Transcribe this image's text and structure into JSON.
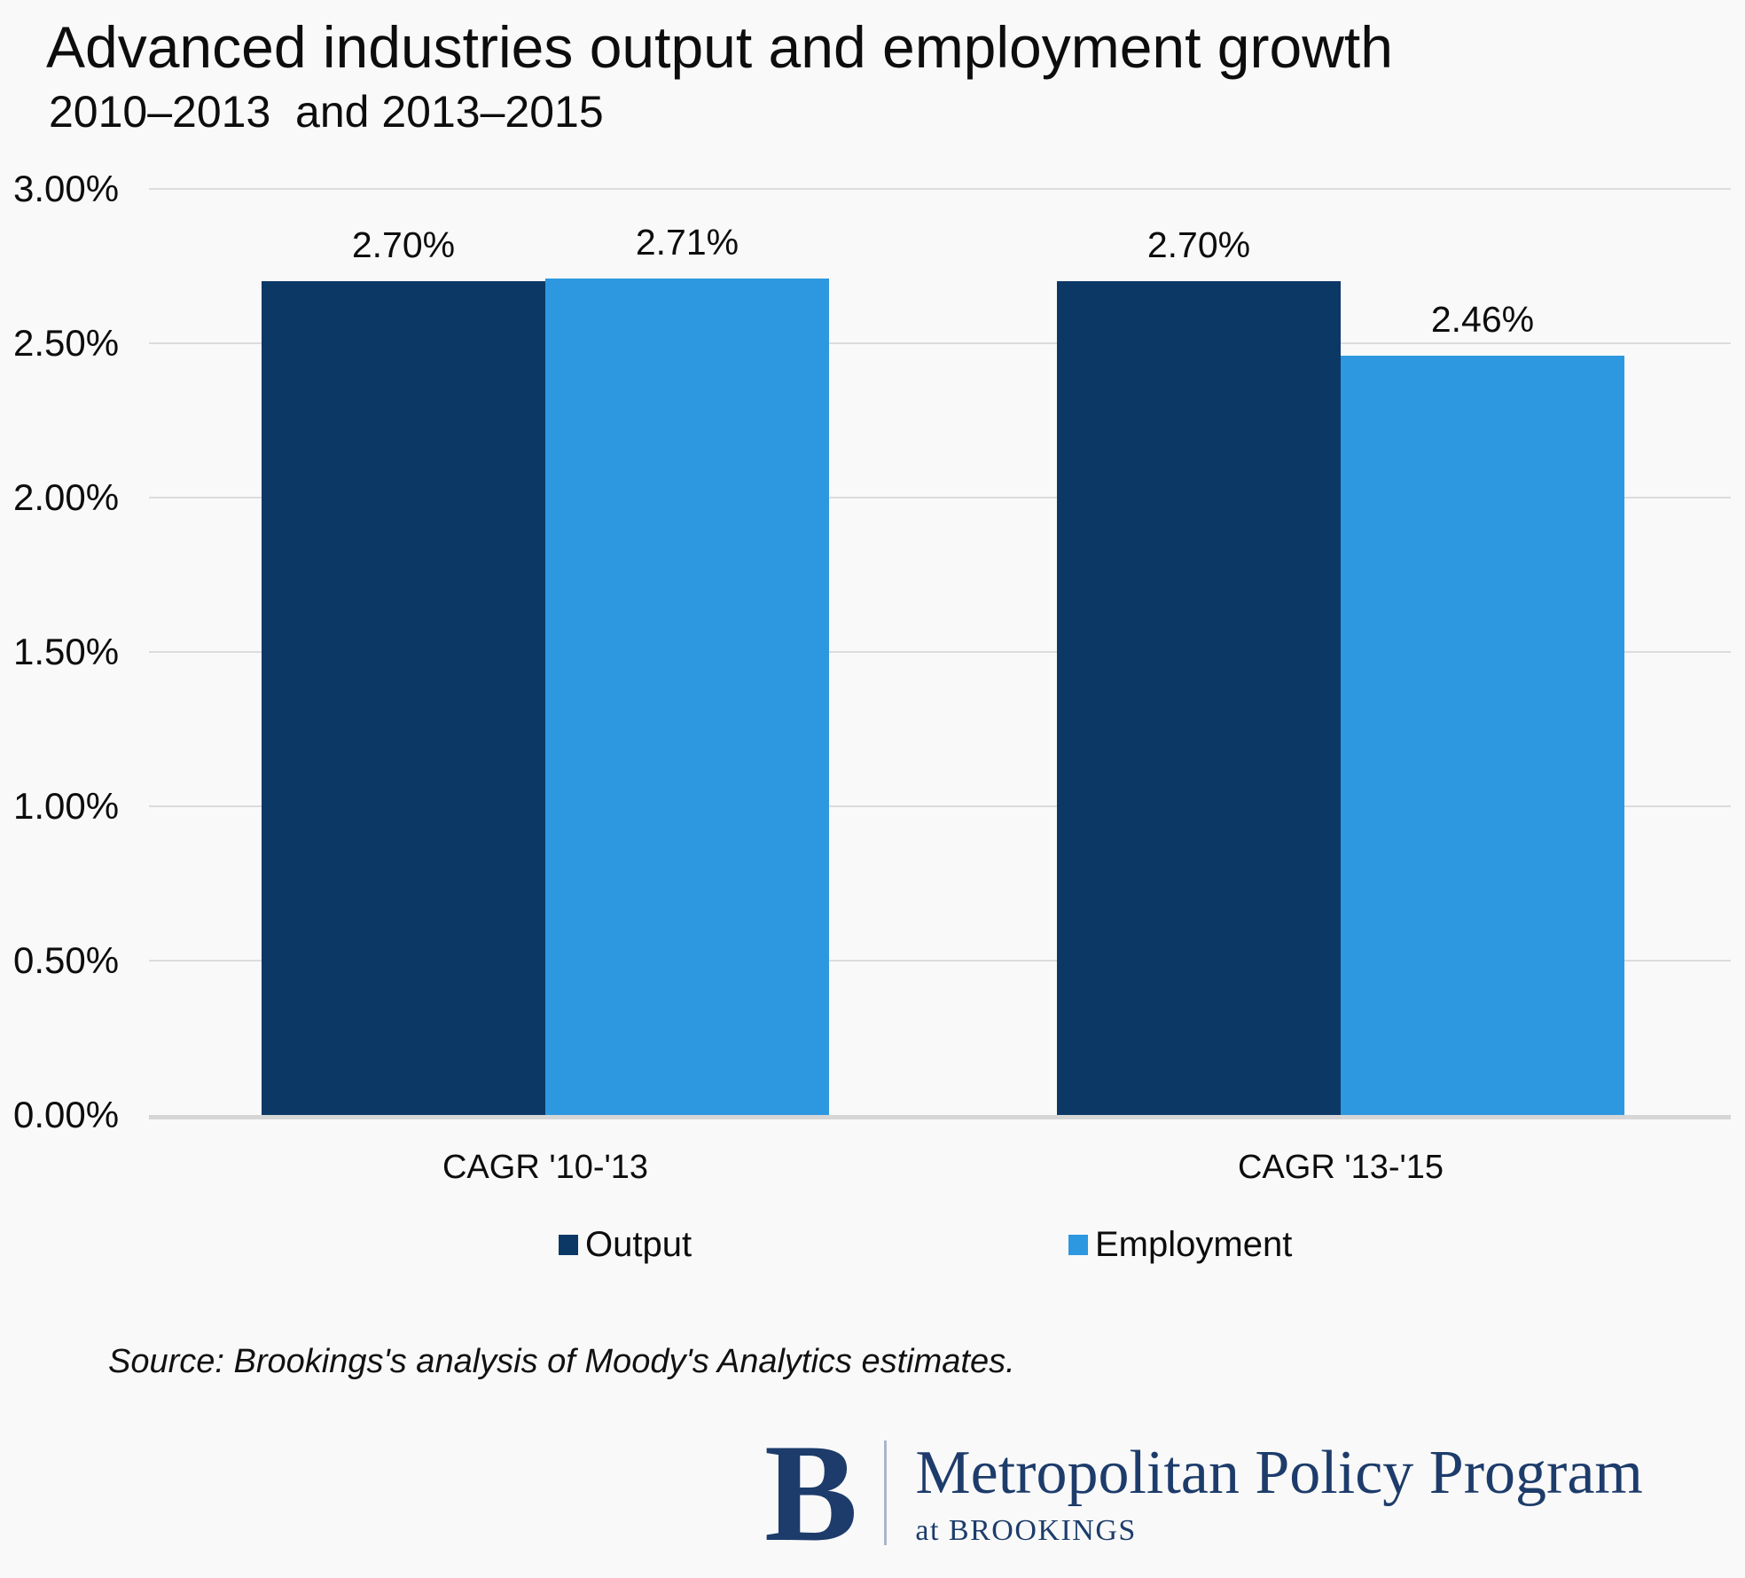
{
  "title": "Advanced industries output and employment growth",
  "subtitle": "2010–2013  and 2013–2015",
  "chart_data": {
    "type": "bar",
    "title": "Advanced industries output and employment growth",
    "subtitle": "2010–2013  and 2013–2015",
    "categories": [
      "CAGR '10-'13",
      "CAGR '13-'15"
    ],
    "series": [
      {
        "name": "Output",
        "color": "#0c3866",
        "values": [
          2.7,
          2.7
        ],
        "labels": [
          "2.70%",
          "2.70%"
        ]
      },
      {
        "name": "Employment",
        "color": "#2d98e0",
        "values": [
          2.71,
          2.46
        ],
        "labels": [
          "2.71%",
          "2.46%"
        ]
      }
    ],
    "xlabel": "",
    "ylabel": "",
    "ylim": [
      0,
      3.0
    ],
    "yticks": [
      "0.00%",
      "0.50%",
      "1.00%",
      "1.50%",
      "2.00%",
      "2.50%",
      "3.00%"
    ],
    "grid": true,
    "gridline_color": "#dcdcdc",
    "legend_position": "bottom"
  },
  "source_note": "Source: Brookings's analysis of Moody's Analytics estimates.",
  "logo": {
    "monogram": "B",
    "program": "Metropolitan Policy Program",
    "sub": "at BROOKINGS",
    "color": "#1d3c6b"
  }
}
